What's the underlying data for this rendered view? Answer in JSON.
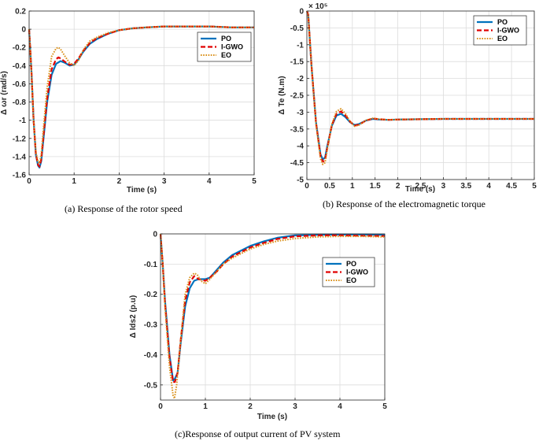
{
  "captions": {
    "a": "(a) Response of the rotor speed",
    "b": "(b) Response of the electromagnetic torque",
    "c": "(c)Response of output current of PV system"
  },
  "colors": {
    "PO": "#0072bd",
    "I-GWO": "#e00000",
    "EO": "#d9901a"
  },
  "chart_data": [
    {
      "id": "a",
      "type": "line",
      "xlabel": "Time (s)",
      "ylabel": "Δ ωr (rad/s)",
      "xlim": [
        0,
        5
      ],
      "ylim": [
        -1.6,
        0.2
      ],
      "xticks": [
        "0",
        "1",
        "2",
        "3",
        "4",
        "5"
      ],
      "yticks": [
        "-1.6",
        "-1.4",
        "-1.2",
        "-1",
        "-0.8",
        "-0.6",
        "-0.4",
        "-0.2",
        "0",
        "0.2"
      ],
      "grid": true,
      "legend_position": "top-right",
      "series": [
        {
          "name": "PO",
          "x": [
            0,
            0.05,
            0.1,
            0.15,
            0.2,
            0.23,
            0.27,
            0.32,
            0.4,
            0.5,
            0.6,
            0.7,
            0.8,
            0.9,
            1.0,
            1.1,
            1.2,
            1.35,
            1.5,
            1.75,
            2.0,
            2.3,
            2.6,
            3.0,
            3.5,
            4.0,
            4.5,
            5.0
          ],
          "y": [
            0,
            -0.45,
            -1.0,
            -1.38,
            -1.5,
            -1.52,
            -1.45,
            -1.2,
            -0.8,
            -0.5,
            -0.38,
            -0.35,
            -0.37,
            -0.4,
            -0.39,
            -0.33,
            -0.25,
            -0.16,
            -0.11,
            -0.05,
            -0.01,
            0.01,
            0.02,
            0.03,
            0.03,
            0.03,
            0.02,
            0.02
          ]
        },
        {
          "name": "I-GWO",
          "x": [
            0,
            0.05,
            0.1,
            0.15,
            0.2,
            0.23,
            0.27,
            0.32,
            0.4,
            0.5,
            0.6,
            0.65,
            0.7,
            0.8,
            0.9,
            1.0,
            1.1,
            1.2,
            1.35,
            1.5,
            1.75,
            2.0,
            2.3,
            2.6,
            3.0,
            3.5,
            4.0,
            4.5,
            5.0
          ],
          "y": [
            0,
            -0.45,
            -1.0,
            -1.37,
            -1.49,
            -1.51,
            -1.43,
            -1.17,
            -0.76,
            -0.44,
            -0.33,
            -0.31,
            -0.32,
            -0.36,
            -0.39,
            -0.38,
            -0.32,
            -0.24,
            -0.15,
            -0.1,
            -0.05,
            -0.01,
            0.01,
            0.02,
            0.03,
            0.03,
            0.03,
            0.02,
            0.02
          ]
        },
        {
          "name": "EO",
          "x": [
            0,
            0.05,
            0.1,
            0.15,
            0.2,
            0.23,
            0.27,
            0.32,
            0.4,
            0.5,
            0.6,
            0.65,
            0.7,
            0.8,
            0.9,
            1.0,
            1.1,
            1.2,
            1.35,
            1.5,
            1.75,
            2.0,
            2.3,
            2.6,
            3.0,
            3.5,
            4.0,
            4.5,
            5.0
          ],
          "y": [
            0,
            -0.45,
            -1.0,
            -1.35,
            -1.46,
            -1.47,
            -1.38,
            -1.08,
            -0.64,
            -0.3,
            -0.21,
            -0.2,
            -0.22,
            -0.3,
            -0.37,
            -0.4,
            -0.34,
            -0.23,
            -0.13,
            -0.09,
            -0.04,
            -0.01,
            0.01,
            0.02,
            0.03,
            0.03,
            0.03,
            0.02,
            0.02
          ]
        }
      ]
    },
    {
      "id": "b",
      "type": "line",
      "xlabel": "Time (s)",
      "ylabel": "Δ Te (N.m)",
      "axis_multiplier": "× 10⁵",
      "xlim": [
        0,
        5
      ],
      "ylim": [
        -5,
        0
      ],
      "xticks": [
        "0",
        "0.5",
        "1",
        "1.5",
        "2",
        "2.5",
        "3",
        "3.5",
        "4",
        "4.5",
        "5"
      ],
      "yticks": [
        "-5",
        "-4.5",
        "-4",
        "-3.5",
        "-3",
        "-2.5",
        "-2",
        "-1.5",
        "-1",
        "-0.5",
        "0"
      ],
      "grid": true,
      "legend_position": "top-right",
      "series": [
        {
          "name": "PO",
          "x": [
            0,
            0.03,
            0.1,
            0.2,
            0.3,
            0.35,
            0.4,
            0.45,
            0.55,
            0.65,
            0.75,
            0.85,
            0.95,
            1.05,
            1.15,
            1.3,
            1.45,
            1.6,
            1.8,
            2.0,
            2.5,
            3.0,
            4.0,
            5.0
          ],
          "y": [
            0,
            -0.1,
            -1.6,
            -3.3,
            -4.25,
            -4.4,
            -4.35,
            -4.0,
            -3.4,
            -3.1,
            -3.05,
            -3.15,
            -3.3,
            -3.38,
            -3.35,
            -3.25,
            -3.2,
            -3.22,
            -3.23,
            -3.22,
            -3.21,
            -3.2,
            -3.2,
            -3.2
          ]
        },
        {
          "name": "I-GWO",
          "x": [
            0,
            0.03,
            0.1,
            0.2,
            0.3,
            0.35,
            0.4,
            0.45,
            0.55,
            0.65,
            0.75,
            0.85,
            0.95,
            1.05,
            1.15,
            1.3,
            1.45,
            1.6,
            1.8,
            2.0,
            2.5,
            3.0,
            4.0,
            5.0
          ],
          "y": [
            0,
            -0.1,
            -1.6,
            -3.32,
            -4.3,
            -4.47,
            -4.42,
            -4.05,
            -3.38,
            -3.05,
            -2.98,
            -3.1,
            -3.28,
            -3.4,
            -3.37,
            -3.25,
            -3.19,
            -3.21,
            -3.23,
            -3.22,
            -3.21,
            -3.2,
            -3.2,
            -3.2
          ]
        },
        {
          "name": "EO",
          "x": [
            0,
            0.03,
            0.1,
            0.2,
            0.3,
            0.35,
            0.4,
            0.45,
            0.55,
            0.65,
            0.75,
            0.85,
            0.95,
            1.05,
            1.15,
            1.3,
            1.45,
            1.6,
            1.8,
            2.0,
            2.5,
            3.0,
            4.0,
            5.0
          ],
          "y": [
            0,
            -0.1,
            -1.6,
            -3.35,
            -4.38,
            -4.55,
            -4.5,
            -4.1,
            -3.35,
            -2.98,
            -2.9,
            -3.05,
            -3.27,
            -3.42,
            -3.38,
            -3.24,
            -3.18,
            -3.21,
            -3.23,
            -3.22,
            -3.21,
            -3.2,
            -3.2,
            -3.2
          ]
        }
      ]
    },
    {
      "id": "c",
      "type": "line",
      "xlabel": "Time (s)",
      "ylabel": "Δ Ids2 (p.u)",
      "xlim": [
        0,
        5
      ],
      "ylim": [
        -0.55,
        0
      ],
      "xticks": [
        "0",
        "1",
        "2",
        "3",
        "4",
        "5"
      ],
      "yticks": [
        "-0.5",
        "-0.4",
        "-0.3",
        "-0.2",
        "-0.1",
        "0"
      ],
      "grid": true,
      "legend_position": "right",
      "series": [
        {
          "name": "PO",
          "x": [
            0,
            0.05,
            0.1,
            0.2,
            0.28,
            0.32,
            0.38,
            0.45,
            0.55,
            0.65,
            0.75,
            0.85,
            1.0,
            1.1,
            1.25,
            1.4,
            1.6,
            1.8,
            2.0,
            2.3,
            2.6,
            3.0,
            3.5,
            4.0,
            4.5,
            5.0
          ],
          "y": [
            0,
            -0.1,
            -0.22,
            -0.4,
            -0.485,
            -0.48,
            -0.46,
            -0.36,
            -0.24,
            -0.18,
            -0.155,
            -0.15,
            -0.15,
            -0.145,
            -0.12,
            -0.095,
            -0.07,
            -0.055,
            -0.04,
            -0.025,
            -0.013,
            -0.005,
            -0.003,
            -0.002,
            -0.002,
            -0.003
          ]
        },
        {
          "name": "I-GWO",
          "x": [
            0,
            0.05,
            0.1,
            0.2,
            0.28,
            0.32,
            0.38,
            0.45,
            0.55,
            0.65,
            0.75,
            0.85,
            1.0,
            1.1,
            1.25,
            1.4,
            1.6,
            1.8,
            2.0,
            2.3,
            2.6,
            3.0,
            3.5,
            4.0,
            4.5,
            5.0
          ],
          "y": [
            0,
            -0.1,
            -0.23,
            -0.41,
            -0.49,
            -0.49,
            -0.46,
            -0.35,
            -0.22,
            -0.16,
            -0.14,
            -0.15,
            -0.155,
            -0.145,
            -0.125,
            -0.1,
            -0.075,
            -0.06,
            -0.045,
            -0.03,
            -0.017,
            -0.008,
            -0.005,
            -0.005,
            -0.006,
            -0.007
          ]
        },
        {
          "name": "EO",
          "x": [
            0,
            0.05,
            0.1,
            0.2,
            0.28,
            0.31,
            0.36,
            0.45,
            0.55,
            0.65,
            0.75,
            0.82,
            0.9,
            1.0,
            1.1,
            1.25,
            1.4,
            1.6,
            1.8,
            2.0,
            2.3,
            2.6,
            3.0,
            3.5,
            4.0,
            4.5,
            5.0
          ],
          "y": [
            0,
            -0.1,
            -0.24,
            -0.44,
            -0.535,
            -0.545,
            -0.5,
            -0.35,
            -0.2,
            -0.145,
            -0.13,
            -0.135,
            -0.155,
            -0.165,
            -0.15,
            -0.125,
            -0.1,
            -0.08,
            -0.065,
            -0.05,
            -0.035,
            -0.024,
            -0.015,
            -0.01,
            -0.008,
            -0.008,
            -0.01
          ]
        }
      ]
    }
  ]
}
